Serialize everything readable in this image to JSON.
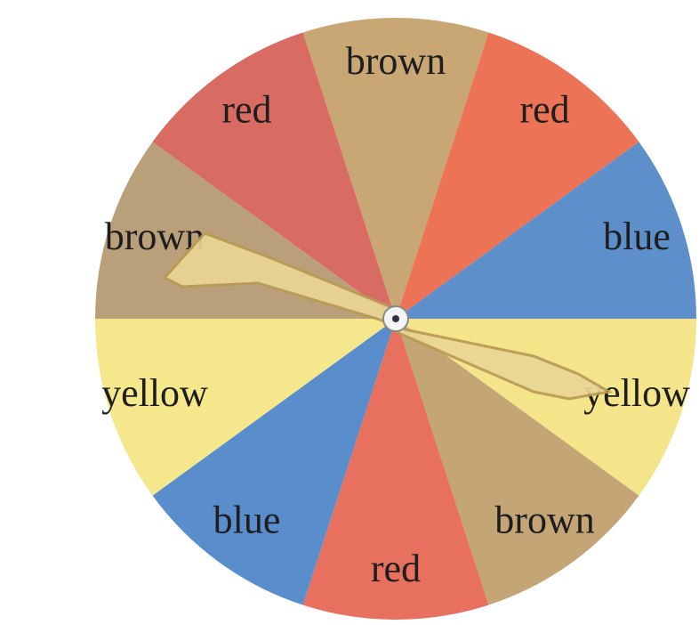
{
  "spinner": {
    "sectors": [
      {
        "label": "brown",
        "color": "#c8a774"
      },
      {
        "label": "red",
        "color": "#ec7356"
      },
      {
        "label": "blue",
        "color": "#5d8fca"
      },
      {
        "label": "yellow",
        "color": "#f4e48a"
      },
      {
        "label": "brown",
        "color": "#c4a575"
      },
      {
        "label": "red",
        "color": "#e7705e"
      },
      {
        "label": "blue",
        "color": "#5a8dcc"
      },
      {
        "label": "yellow",
        "color": "#f5e78c"
      },
      {
        "label": "brown",
        "color": "#b9a07a"
      },
      {
        "label": "red",
        "color": "#d96c62"
      }
    ]
  }
}
